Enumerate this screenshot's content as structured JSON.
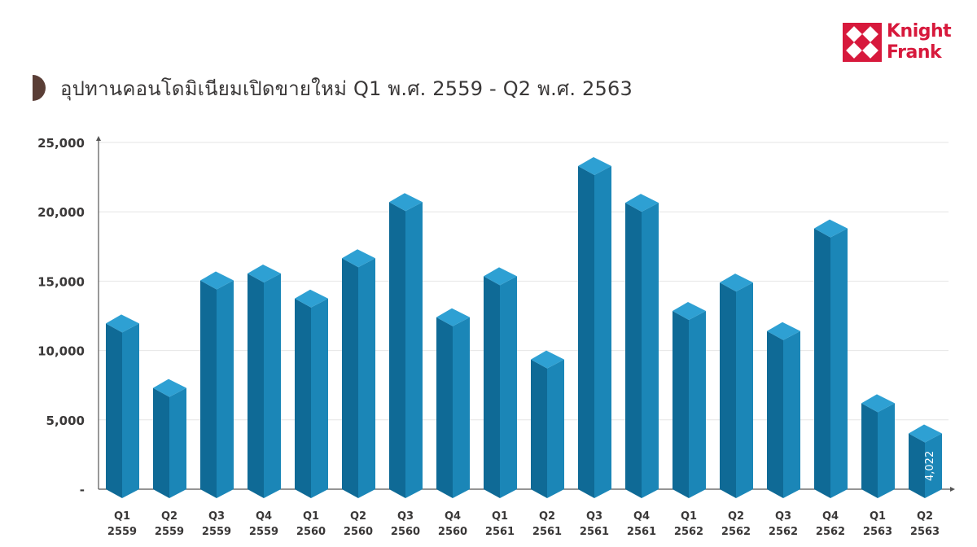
{
  "title": {
    "text": "อุปทานคอนโดมิเนียมเปิดขายใหม่ Q1 พ.ศ. 2559 - Q2 พ.ศ. 2563",
    "icon": "half-circle-icon"
  },
  "logo": {
    "line1": "Knight",
    "line2": "Frank",
    "color": "#d7193c"
  },
  "colors": {
    "bar_front": "#1b86b7",
    "bar_side": "#0f6a96",
    "bar_top": "#2ea0d3",
    "axis": "#555555",
    "grid": "#e6e6e6",
    "title": "#3a3838",
    "icon": "#5a3e36"
  },
  "chart_data": {
    "type": "bar",
    "style": "3d",
    "title": "อุปทานคอนโดมิเนียมเปิดขายใหม่ Q1 พ.ศ. 2559 - Q2 พ.ศ. 2563",
    "xlabel": "",
    "ylabel": "",
    "ylim": [
      0,
      25000
    ],
    "y_ticks": [
      {
        "value": 0,
        "label": "-"
      },
      {
        "value": 5000,
        "label": "5,000"
      },
      {
        "value": 10000,
        "label": "10,000"
      },
      {
        "value": 15000,
        "label": "15,000"
      },
      {
        "value": 20000,
        "label": "20,000"
      },
      {
        "value": 25000,
        "label": "25,000"
      }
    ],
    "grid": true,
    "categories": [
      [
        "Q1",
        "2559"
      ],
      [
        "Q2",
        "2559"
      ],
      [
        "Q3",
        "2559"
      ],
      [
        "Q4",
        "2559"
      ],
      [
        "Q1",
        "2560"
      ],
      [
        "Q2",
        "2560"
      ],
      [
        "Q3",
        "2560"
      ],
      [
        "Q4",
        "2560"
      ],
      [
        "Q1",
        "2561"
      ],
      [
        "Q2",
        "2561"
      ],
      [
        "Q3",
        "2561"
      ],
      [
        "Q4",
        "2561"
      ],
      [
        "Q1",
        "2562"
      ],
      [
        "Q2",
        "2562"
      ],
      [
        "Q3",
        "2562"
      ],
      [
        "Q4",
        "2562"
      ],
      [
        "Q1",
        "2563"
      ],
      [
        "Q2",
        "2563"
      ]
    ],
    "values": [
      11950,
      7300,
      15050,
      15550,
      13750,
      16650,
      20700,
      12400,
      15350,
      9350,
      23300,
      20650,
      12850,
      14900,
      11400,
      18800,
      6200,
      4022
    ],
    "data_labels": [
      {
        "index": 17,
        "text": "4,022"
      }
    ]
  }
}
